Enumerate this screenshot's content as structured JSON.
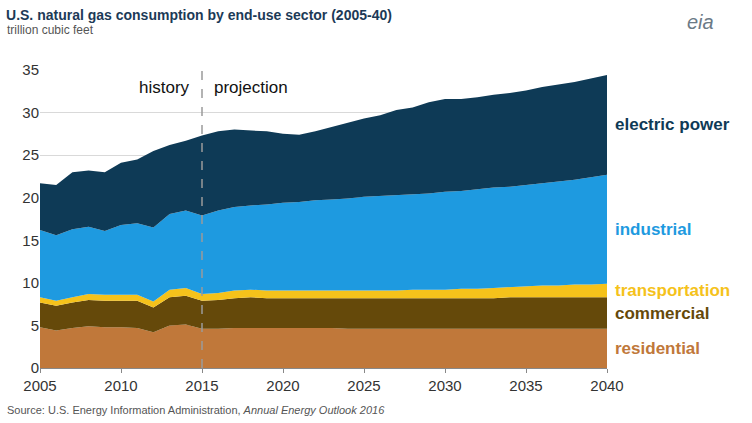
{
  "chart_data": {
    "type": "area",
    "stacked": true,
    "title": "U.S. natural gas consumption by end-use sector (2005-40)",
    "subtitle": "trillion cubic feet",
    "source": "Source: U.S. Energy Information Administration, Annual Energy Outlook 2016",
    "source_emphasis": "Annual Energy Outlook 2016",
    "logo": "eia",
    "annotations": [
      "history",
      "projection"
    ],
    "projection_start": 2015,
    "x": [
      2005,
      2006,
      2007,
      2008,
      2009,
      2010,
      2011,
      2012,
      2013,
      2014,
      2015,
      2016,
      2017,
      2018,
      2019,
      2020,
      2021,
      2022,
      2023,
      2024,
      2025,
      2026,
      2027,
      2028,
      2029,
      2030,
      2031,
      2032,
      2033,
      2034,
      2035,
      2036,
      2037,
      2038,
      2039,
      2040
    ],
    "xlim": [
      2005,
      2040
    ],
    "xticks": [
      2005,
      2010,
      2015,
      2020,
      2025,
      2030,
      2035,
      2040
    ],
    "ylim": [
      0,
      35
    ],
    "yticks": [
      0,
      5,
      10,
      15,
      20,
      25,
      30,
      35
    ],
    "grid": true,
    "tick_labels": true,
    "series": [
      {
        "name": "residential",
        "color": "#c0783a",
        "values": [
          4.8,
          4.4,
          4.7,
          4.9,
          4.8,
          4.8,
          4.7,
          4.2,
          5.0,
          5.1,
          4.6,
          4.6,
          4.7,
          4.7,
          4.7,
          4.7,
          4.7,
          4.7,
          4.7,
          4.6,
          4.6,
          4.6,
          4.6,
          4.6,
          4.6,
          4.6,
          4.6,
          4.6,
          4.6,
          4.6,
          4.6,
          4.6,
          4.6,
          4.6,
          4.6,
          4.6
        ]
      },
      {
        "name": "commercial",
        "color": "#65490a",
        "values": [
          2.9,
          2.9,
          3.0,
          3.1,
          3.1,
          3.1,
          3.2,
          2.9,
          3.3,
          3.4,
          3.3,
          3.4,
          3.5,
          3.6,
          3.5,
          3.5,
          3.5,
          3.5,
          3.5,
          3.6,
          3.6,
          3.6,
          3.6,
          3.6,
          3.6,
          3.6,
          3.6,
          3.6,
          3.6,
          3.7,
          3.7,
          3.7,
          3.7,
          3.7,
          3.7,
          3.7
        ]
      },
      {
        "name": "transportation",
        "color": "#f5c21b",
        "values": [
          0.6,
          0.6,
          0.6,
          0.7,
          0.7,
          0.7,
          0.7,
          0.7,
          0.9,
          0.9,
          0.8,
          0.8,
          0.9,
          0.9,
          0.9,
          0.9,
          0.9,
          0.9,
          0.9,
          0.9,
          0.9,
          0.9,
          0.9,
          1.0,
          1.0,
          1.0,
          1.1,
          1.1,
          1.2,
          1.2,
          1.3,
          1.4,
          1.4,
          1.5,
          1.5,
          1.6
        ]
      },
      {
        "name": "industrial",
        "color": "#1e9ae0",
        "values": [
          7.9,
          7.7,
          8.0,
          7.9,
          7.5,
          8.2,
          8.4,
          8.7,
          8.9,
          9.1,
          9.2,
          9.7,
          9.8,
          9.9,
          10.1,
          10.3,
          10.4,
          10.6,
          10.7,
          10.8,
          11.0,
          11.1,
          11.2,
          11.2,
          11.3,
          11.5,
          11.5,
          11.7,
          11.8,
          11.8,
          11.9,
          12.0,
          12.2,
          12.3,
          12.6,
          12.8
        ]
      },
      {
        "name": "electric power",
        "color": "#0e3a56",
        "values": [
          5.5,
          5.9,
          6.7,
          6.6,
          6.9,
          7.3,
          7.5,
          9.0,
          8.1,
          8.2,
          9.4,
          9.3,
          9.1,
          8.8,
          8.6,
          8.1,
          7.9,
          8.1,
          8.5,
          8.9,
          9.2,
          9.5,
          10.0,
          10.2,
          10.7,
          10.9,
          10.8,
          10.8,
          10.9,
          11.0,
          11.1,
          11.3,
          11.4,
          11.5,
          11.6,
          11.7
        ]
      }
    ]
  }
}
